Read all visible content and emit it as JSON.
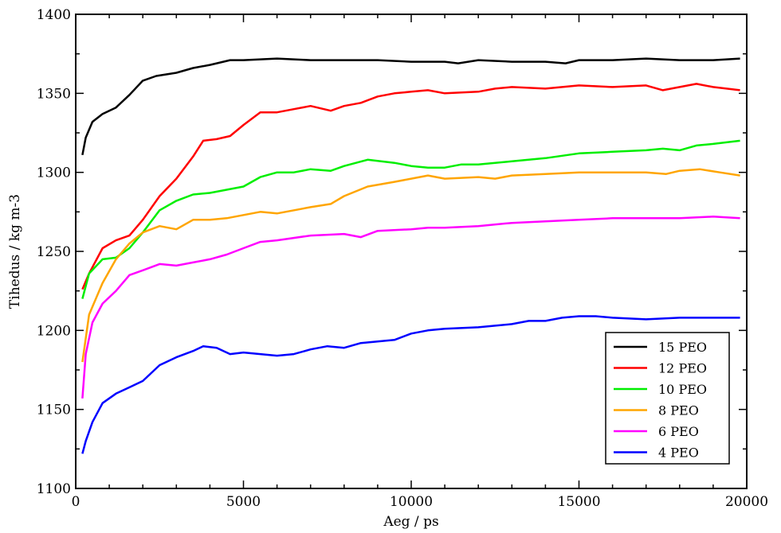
{
  "chart_data": {
    "type": "line",
    "title": "",
    "xlabel": "Aeg / ps",
    "ylabel": "Tihedus / kg m-3",
    "xlim": [
      0,
      20000
    ],
    "ylim": [
      1100,
      1400
    ],
    "xticks": [
      0,
      5000,
      10000,
      15000,
      20000
    ],
    "xtick_labels": [
      "0",
      "5000",
      "10000",
      "15000",
      "20000"
    ],
    "yticks": [
      1100,
      1150,
      1200,
      1250,
      1300,
      1350,
      1400
    ],
    "ytick_labels": [
      "1100",
      "1150",
      "1200",
      "1250",
      "1300",
      "1350",
      "1400"
    ],
    "grid": false,
    "legend_position": "bottom-right",
    "series": [
      {
        "name": "15 PEO",
        "color": "#000000",
        "points": [
          [
            200,
            1311
          ],
          [
            300,
            1322
          ],
          [
            500,
            1332
          ],
          [
            800,
            1337
          ],
          [
            1200,
            1341
          ],
          [
            1600,
            1349
          ],
          [
            2000,
            1358
          ],
          [
            2400,
            1361
          ],
          [
            3000,
            1363
          ],
          [
            3500,
            1366
          ],
          [
            4000,
            1368
          ],
          [
            4600,
            1371
          ],
          [
            5000,
            1371
          ],
          [
            6000,
            1372
          ],
          [
            7000,
            1371
          ],
          [
            8000,
            1371
          ],
          [
            9000,
            1371
          ],
          [
            10000,
            1370
          ],
          [
            11000,
            1370
          ],
          [
            11400,
            1369
          ],
          [
            12000,
            1371
          ],
          [
            13000,
            1370
          ],
          [
            14000,
            1370
          ],
          [
            14600,
            1369
          ],
          [
            15000,
            1371
          ],
          [
            16000,
            1371
          ],
          [
            17000,
            1372
          ],
          [
            18000,
            1371
          ],
          [
            19000,
            1371
          ],
          [
            19800,
            1372
          ]
        ]
      },
      {
        "name": "12 PEO",
        "color": "#ff0000",
        "points": [
          [
            200,
            1226
          ],
          [
            400,
            1236
          ],
          [
            800,
            1252
          ],
          [
            1200,
            1257
          ],
          [
            1600,
            1260
          ],
          [
            2000,
            1270
          ],
          [
            2500,
            1285
          ],
          [
            3000,
            1296
          ],
          [
            3500,
            1310
          ],
          [
            3800,
            1320
          ],
          [
            4200,
            1321
          ],
          [
            4600,
            1323
          ],
          [
            5000,
            1330
          ],
          [
            5500,
            1338
          ],
          [
            6000,
            1338
          ],
          [
            6500,
            1340
          ],
          [
            7000,
            1342
          ],
          [
            7600,
            1339
          ],
          [
            8000,
            1342
          ],
          [
            8500,
            1344
          ],
          [
            9000,
            1348
          ],
          [
            9500,
            1350
          ],
          [
            10000,
            1351
          ],
          [
            10500,
            1352
          ],
          [
            11000,
            1350
          ],
          [
            12000,
            1351
          ],
          [
            12500,
            1353
          ],
          [
            13000,
            1354
          ],
          [
            14000,
            1353
          ],
          [
            15000,
            1355
          ],
          [
            16000,
            1354
          ],
          [
            17000,
            1355
          ],
          [
            17500,
            1352
          ],
          [
            18000,
            1354
          ],
          [
            18500,
            1356
          ],
          [
            19000,
            1354
          ],
          [
            19800,
            1352
          ]
        ]
      },
      {
        "name": "10 PEO",
        "color": "#00ee00",
        "points": [
          [
            200,
            1220
          ],
          [
            400,
            1236
          ],
          [
            800,
            1245
          ],
          [
            1200,
            1246
          ],
          [
            1600,
            1252
          ],
          [
            2000,
            1262
          ],
          [
            2500,
            1276
          ],
          [
            3000,
            1282
          ],
          [
            3500,
            1286
          ],
          [
            4000,
            1287
          ],
          [
            4500,
            1289
          ],
          [
            5000,
            1291
          ],
          [
            5500,
            1297
          ],
          [
            6000,
            1300
          ],
          [
            6500,
            1300
          ],
          [
            7000,
            1302
          ],
          [
            7600,
            1301
          ],
          [
            8000,
            1304
          ],
          [
            8700,
            1308
          ],
          [
            9500,
            1306
          ],
          [
            10000,
            1304
          ],
          [
            10500,
            1303
          ],
          [
            11000,
            1303
          ],
          [
            11500,
            1305
          ],
          [
            12000,
            1305
          ],
          [
            13000,
            1307
          ],
          [
            14000,
            1309
          ],
          [
            15000,
            1312
          ],
          [
            16000,
            1313
          ],
          [
            17000,
            1314
          ],
          [
            17500,
            1315
          ],
          [
            18000,
            1314
          ],
          [
            18500,
            1317
          ],
          [
            19000,
            1318
          ],
          [
            19800,
            1320
          ]
        ]
      },
      {
        "name": "8 PEO",
        "color": "#ffa500",
        "points": [
          [
            200,
            1180
          ],
          [
            400,
            1210
          ],
          [
            800,
            1230
          ],
          [
            1200,
            1245
          ],
          [
            1600,
            1255
          ],
          [
            2000,
            1262
          ],
          [
            2500,
            1266
          ],
          [
            3000,
            1264
          ],
          [
            3500,
            1270
          ],
          [
            4000,
            1270
          ],
          [
            4500,
            1271
          ],
          [
            5000,
            1273
          ],
          [
            5500,
            1275
          ],
          [
            6000,
            1274
          ],
          [
            7000,
            1278
          ],
          [
            7600,
            1280
          ],
          [
            8000,
            1285
          ],
          [
            8700,
            1291
          ],
          [
            9500,
            1294
          ],
          [
            10000,
            1296
          ],
          [
            10500,
            1298
          ],
          [
            11000,
            1296
          ],
          [
            12000,
            1297
          ],
          [
            12500,
            1296
          ],
          [
            13000,
            1298
          ],
          [
            14000,
            1299
          ],
          [
            15000,
            1300
          ],
          [
            16000,
            1300
          ],
          [
            17000,
            1300
          ],
          [
            17600,
            1299
          ],
          [
            18000,
            1301
          ],
          [
            18600,
            1302
          ],
          [
            19200,
            1300
          ],
          [
            19800,
            1298
          ]
        ]
      },
      {
        "name": "6 PEO",
        "color": "#ff00ff",
        "points": [
          [
            200,
            1157
          ],
          [
            300,
            1185
          ],
          [
            500,
            1205
          ],
          [
            800,
            1217
          ],
          [
            1200,
            1225
          ],
          [
            1600,
            1235
          ],
          [
            2000,
            1238
          ],
          [
            2500,
            1242
          ],
          [
            3000,
            1241
          ],
          [
            3500,
            1243
          ],
          [
            4000,
            1245
          ],
          [
            4500,
            1248
          ],
          [
            5000,
            1252
          ],
          [
            5500,
            1256
          ],
          [
            6000,
            1257
          ],
          [
            7000,
            1260
          ],
          [
            8000,
            1261
          ],
          [
            8500,
            1259
          ],
          [
            9000,
            1263
          ],
          [
            10000,
            1264
          ],
          [
            10500,
            1265
          ],
          [
            11000,
            1265
          ],
          [
            12000,
            1266
          ],
          [
            13000,
            1268
          ],
          [
            14000,
            1269
          ],
          [
            15000,
            1270
          ],
          [
            16000,
            1271
          ],
          [
            17000,
            1271
          ],
          [
            18000,
            1271
          ],
          [
            19000,
            1272
          ],
          [
            19800,
            1271
          ]
        ]
      },
      {
        "name": "4 PEO",
        "color": "#0000ff",
        "points": [
          [
            200,
            1122
          ],
          [
            300,
            1130
          ],
          [
            500,
            1142
          ],
          [
            800,
            1154
          ],
          [
            1200,
            1160
          ],
          [
            1600,
            1164
          ],
          [
            2000,
            1168
          ],
          [
            2500,
            1178
          ],
          [
            3000,
            1183
          ],
          [
            3500,
            1187
          ],
          [
            3800,
            1190
          ],
          [
            4200,
            1189
          ],
          [
            4600,
            1185
          ],
          [
            5000,
            1186
          ],
          [
            5500,
            1185
          ],
          [
            6000,
            1184
          ],
          [
            6500,
            1185
          ],
          [
            7000,
            1188
          ],
          [
            7500,
            1190
          ],
          [
            8000,
            1189
          ],
          [
            8500,
            1192
          ],
          [
            9000,
            1193
          ],
          [
            9500,
            1194
          ],
          [
            10000,
            1198
          ],
          [
            10500,
            1200
          ],
          [
            11000,
            1201
          ],
          [
            12000,
            1202
          ],
          [
            13000,
            1204
          ],
          [
            13500,
            1206
          ],
          [
            14000,
            1206
          ],
          [
            14500,
            1208
          ],
          [
            15000,
            1209
          ],
          [
            15500,
            1209
          ],
          [
            16000,
            1208
          ],
          [
            17000,
            1207
          ],
          [
            18000,
            1208
          ],
          [
            19000,
            1208
          ],
          [
            19800,
            1208
          ]
        ]
      }
    ]
  }
}
